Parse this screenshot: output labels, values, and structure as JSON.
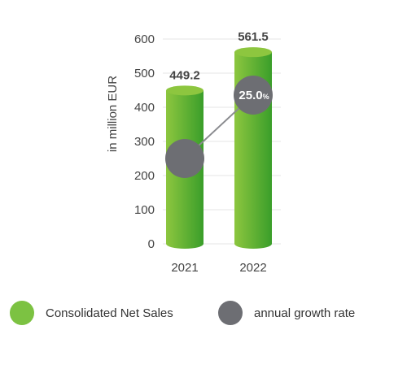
{
  "chart_data": {
    "type": "bar",
    "categories": [
      "2021",
      "2022"
    ],
    "series": [
      {
        "name": "Consolidated Net Sales",
        "values": [
          449.2,
          561.5
        ]
      }
    ],
    "value_labels": [
      "449.2",
      "561.5"
    ],
    "growth": {
      "name": "annual growth rate",
      "value": 25.0,
      "label": "25.0",
      "unit": "%"
    },
    "ylabel": "in million EUR",
    "ylim": [
      0,
      600
    ],
    "yticks": [
      0,
      100,
      200,
      300,
      400,
      500,
      600
    ],
    "grid": true,
    "legend_position": "bottom"
  },
  "colors": {
    "bar_light": "#8dc63f",
    "bar_dark": "#3a9e2a",
    "circle": "#6d6e73",
    "grid": "#e6e6e6",
    "connector": "#8a8b8f"
  },
  "legend": [
    {
      "label": "Consolidated Net Sales",
      "color": "#7cc242"
    },
    {
      "label": "annual growth rate",
      "color": "#6d6e73"
    }
  ]
}
